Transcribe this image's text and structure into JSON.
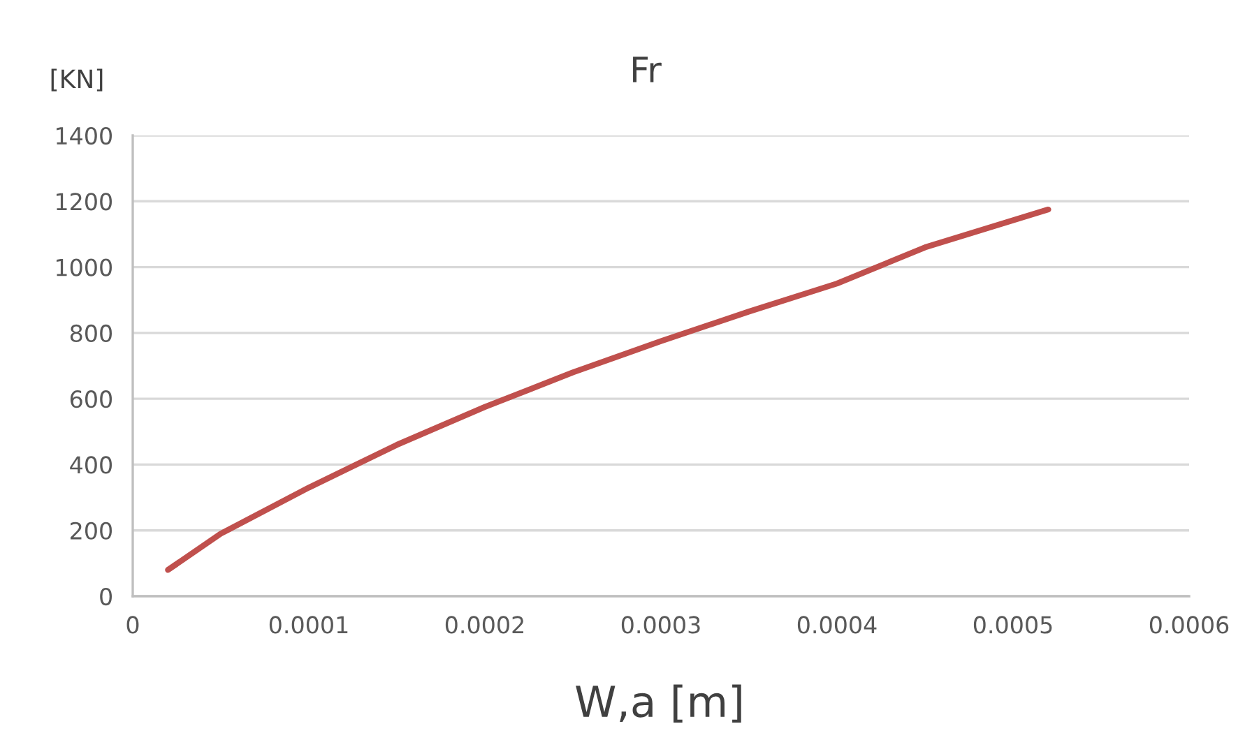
{
  "chart_data": {
    "type": "line",
    "title": "Fr",
    "ylabel": "[KN]",
    "xlabel": "W,a [m]",
    "x": [
      2e-05,
      5e-05,
      0.0001,
      0.00015,
      0.0002,
      0.00025,
      0.0003,
      0.00035,
      0.0004,
      0.00045,
      0.00052
    ],
    "series": [
      {
        "color": "#c0504d",
        "values": [
          80,
          190,
          330,
          460,
          575,
          680,
          775,
          865,
          950,
          1060,
          1175
        ]
      }
    ],
    "xlim": [
      0,
      0.0006
    ],
    "xticks": [
      0,
      {
        "value": 0.0001,
        "label": "0.0001"
      },
      {
        "value": 0.0002,
        "label": "0.0002"
      },
      {
        "value": 0.0003,
        "label": "0.0003"
      },
      {
        "value": 0.0004,
        "label": "0.0004"
      },
      {
        "value": 0.0005,
        "label": "0.0005"
      },
      {
        "value": 0.0006,
        "label": "0.0006"
      }
    ],
    "ylim": [
      0,
      1400
    ],
    "yticks": [
      0,
      200,
      400,
      600,
      800,
      1000,
      1200,
      1400
    ],
    "grid": "y",
    "marker": "none",
    "line_style": "solid"
  }
}
